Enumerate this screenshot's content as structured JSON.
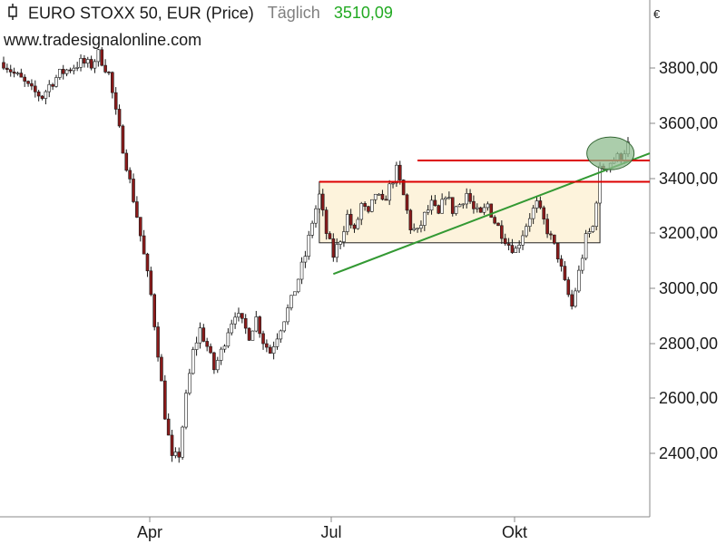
{
  "header": {
    "title": "EURO STOXX 50, EUR (Price)",
    "frequency": "Täglich",
    "last_value": "3510,09",
    "last_value_color": "#22aa22"
  },
  "source_url": "www.tradesignalonline.com",
  "colors": {
    "up_candle": "#ffffff",
    "down_candle": "#8b1a1a",
    "candle_outline": "#1a1a1a",
    "resistance_line": "#dd0000",
    "trend_line": "#339933",
    "range_box_fill": "#fdf3dc",
    "range_box_stroke": "#222222",
    "highlight_ellipse_fill": "#8fbc8f",
    "axis": "#888888"
  },
  "chart_data": {
    "type": "candlestick",
    "title": "EURO STOXX 50, EUR (Price)",
    "currency_label": "€",
    "x_ticks": [
      "Apr",
      "Jul",
      "Okt"
    ],
    "y_ticks": [
      "2400,00",
      "2600,00",
      "2800,00",
      "3000,00",
      "3200,00",
      "3400,00",
      "3600,00",
      "3800,00"
    ],
    "y_tick_values": [
      2400,
      2600,
      2800,
      3000,
      3200,
      3400,
      3600,
      3800
    ],
    "ylim": [
      2200,
      4020
    ],
    "price_path": [
      [
        0,
        3800
      ],
      [
        6,
        3760
      ],
      [
        10,
        3740
      ],
      [
        16,
        3700
      ],
      [
        22,
        3680
      ],
      [
        26,
        3720
      ],
      [
        32,
        3760
      ],
      [
        38,
        3780
      ],
      [
        44,
        3800
      ],
      [
        50,
        3790
      ],
      [
        54,
        3830
      ],
      [
        60,
        3760
      ],
      [
        64,
        3620
      ],
      [
        68,
        3500
      ],
      [
        72,
        3380
      ],
      [
        76,
        3260
      ],
      [
        80,
        3120
      ],
      [
        84,
        2980
      ],
      [
        88,
        2780
      ],
      [
        92,
        2560
      ],
      [
        96,
        2400
      ],
      [
        100,
        2420
      ],
      [
        104,
        2620
      ],
      [
        108,
        2780
      ],
      [
        112,
        2860
      ],
      [
        116,
        2800
      ],
      [
        120,
        2720
      ],
      [
        124,
        2780
      ],
      [
        128,
        2860
      ],
      [
        132,
        2920
      ],
      [
        136,
        2880
      ],
      [
        140,
        2840
      ],
      [
        144,
        2900
      ],
      [
        148,
        2820
      ],
      [
        152,
        2780
      ],
      [
        156,
        2840
      ],
      [
        160,
        2900
      ],
      [
        164,
        2960
      ],
      [
        168,
        3040
      ],
      [
        172,
        3120
      ],
      [
        176,
        3240
      ],
      [
        180,
        3330
      ],
      [
        184,
        3200
      ],
      [
        188,
        3120
      ],
      [
        192,
        3180
      ],
      [
        196,
        3260
      ],
      [
        200,
        3200
      ],
      [
        204,
        3300
      ],
      [
        208,
        3260
      ],
      [
        212,
        3340
      ],
      [
        216,
        3300
      ],
      [
        220,
        3360
      ],
      [
        224,
        3420
      ],
      [
        228,
        3330
      ],
      [
        232,
        3220
      ],
      [
        236,
        3200
      ],
      [
        240,
        3260
      ],
      [
        244,
        3300
      ],
      [
        248,
        3260
      ],
      [
        252,
        3340
      ],
      [
        256,
        3280
      ],
      [
        260,
        3300
      ],
      [
        264,
        3340
      ],
      [
        268,
        3280
      ],
      [
        272,
        3260
      ],
      [
        276,
        3300
      ],
      [
        280,
        3240
      ],
      [
        284,
        3200
      ],
      [
        288,
        3160
      ],
      [
        292,
        3140
      ],
      [
        296,
        3200
      ],
      [
        300,
        3260
      ],
      [
        304,
        3300
      ],
      [
        308,
        3240
      ],
      [
        312,
        3180
      ],
      [
        316,
        3120
      ],
      [
        320,
        3020
      ],
      [
        324,
        2940
      ],
      [
        328,
        3060
      ],
      [
        332,
        3180
      ],
      [
        336,
        3220
      ],
      [
        340,
        3420
      ],
      [
        344,
        3440
      ],
      [
        348,
        3460
      ],
      [
        352,
        3470
      ],
      [
        356,
        3510
      ]
    ],
    "resistance_levels": [
      3455,
      3380
    ],
    "support_box": {
      "top": 3380,
      "bottom": 3165
    },
    "trend_line": {
      "from": 3055,
      "to": 3480
    }
  }
}
